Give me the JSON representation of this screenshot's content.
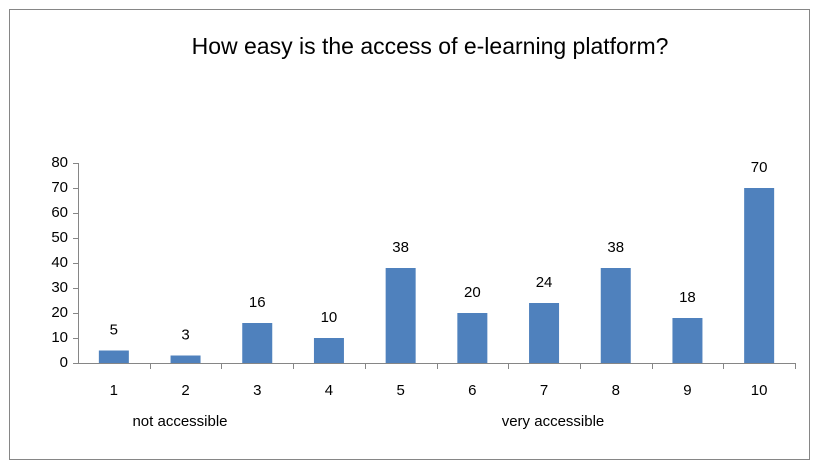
{
  "chart_data": {
    "type": "bar",
    "title": "How easy is the access of e-learning platform?",
    "categories": [
      "1",
      "2",
      "3",
      "4",
      "5",
      "6",
      "7",
      "8",
      "9",
      "10"
    ],
    "values": [
      5,
      3,
      16,
      10,
      38,
      20,
      24,
      38,
      18,
      70
    ],
    "color": "#4f81bd",
    "ylim": [
      0,
      80
    ],
    "yticks": [
      0,
      10,
      20,
      30,
      40,
      50,
      60,
      70,
      80
    ],
    "grid": false,
    "annotations": [
      "not accessible",
      "very accessible"
    ]
  }
}
